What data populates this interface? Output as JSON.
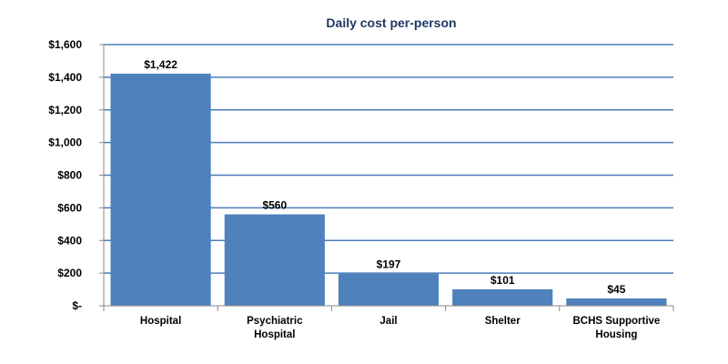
{
  "chart_data": {
    "type": "bar",
    "title": "Daily cost per-person",
    "categories": [
      [
        "Hospital"
      ],
      [
        "Psychiatric",
        "Hospital"
      ],
      [
        "Jail"
      ],
      [
        "Shelter"
      ],
      [
        "BCHS Supportive",
        "Housing"
      ]
    ],
    "values": [
      1422,
      560,
      197,
      101,
      45
    ],
    "data_labels": [
      "$1,422",
      "$560",
      "$197",
      "$101",
      "$45"
    ],
    "ylim": [
      0,
      1600
    ],
    "yticks": [
      0,
      200,
      400,
      600,
      800,
      1000,
      1200,
      1400,
      1600
    ],
    "ytick_labels": [
      "$-",
      "$200",
      "$400",
      "$600",
      "$800",
      "$1,000",
      "$1,200",
      "$1,400",
      "$1,600"
    ],
    "grid": true,
    "legend": "none",
    "colors": {
      "bar": "#4F81BD",
      "grid": "#4A7EBB",
      "title": "#1F3864"
    }
  }
}
